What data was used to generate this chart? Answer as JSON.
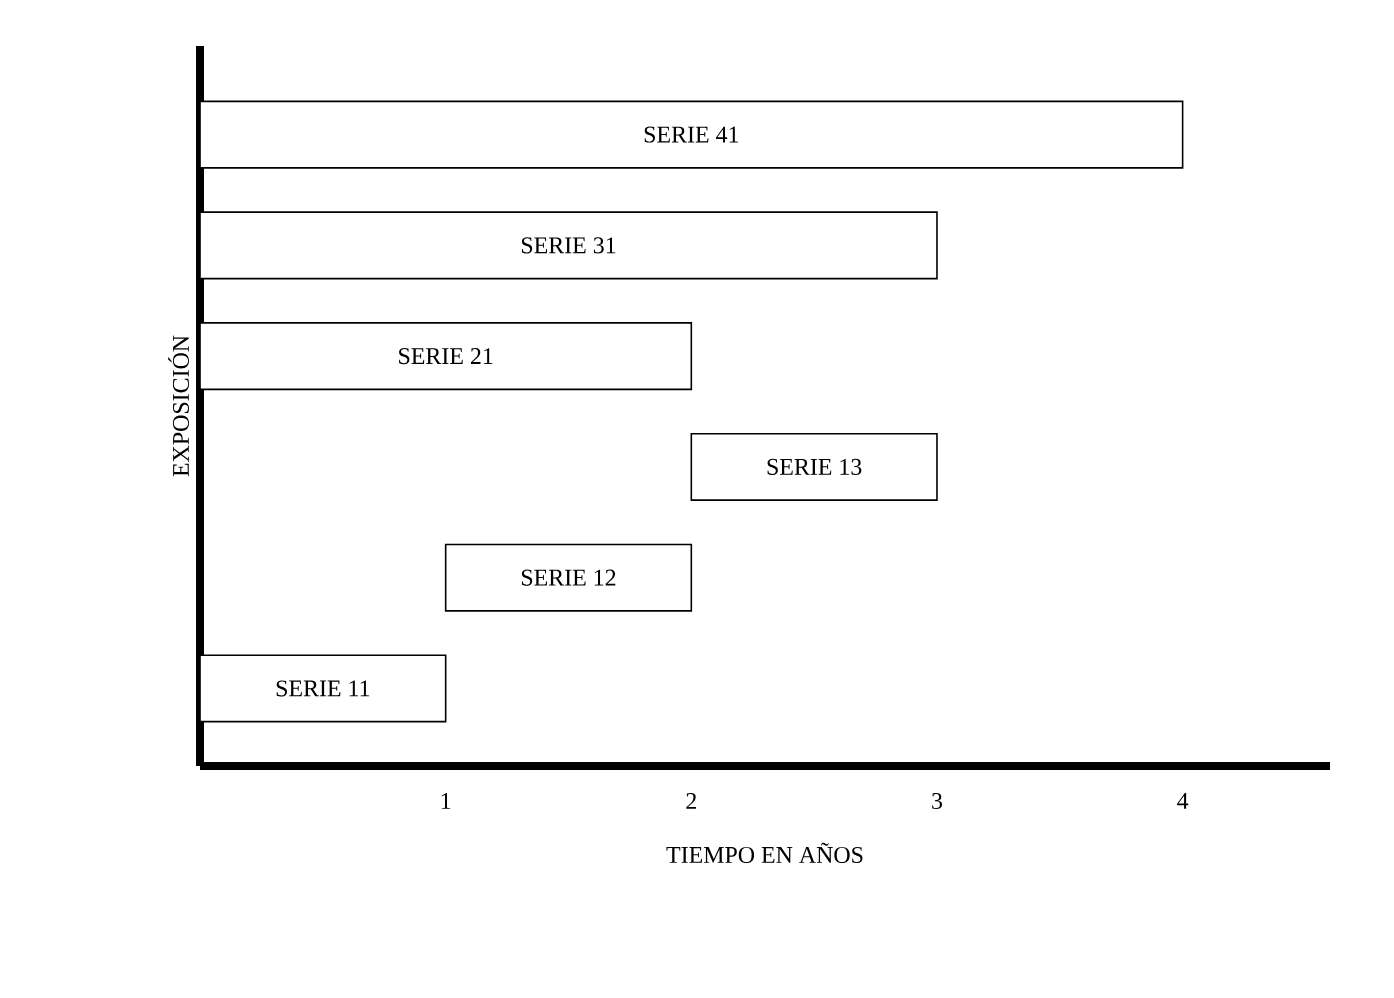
{
  "chart_data": {
    "type": "bar",
    "orientation": "horizontal",
    "ylabel": "EXPOSICIÓN",
    "xlabel": "TIEMPO EN AÑOS",
    "categories": [
      "SERIE 41",
      "SERIE 31",
      "SERIE 21",
      "SERIE 13",
      "SERIE 12",
      "SERIE 11"
    ],
    "base": [
      0,
      0,
      0,
      2,
      1,
      0
    ],
    "values": [
      4,
      3,
      2,
      1,
      1,
      1
    ],
    "color": "#ffffff",
    "xlim": [
      0,
      4.6
    ],
    "xticks": [
      1,
      2,
      3,
      4
    ]
  }
}
